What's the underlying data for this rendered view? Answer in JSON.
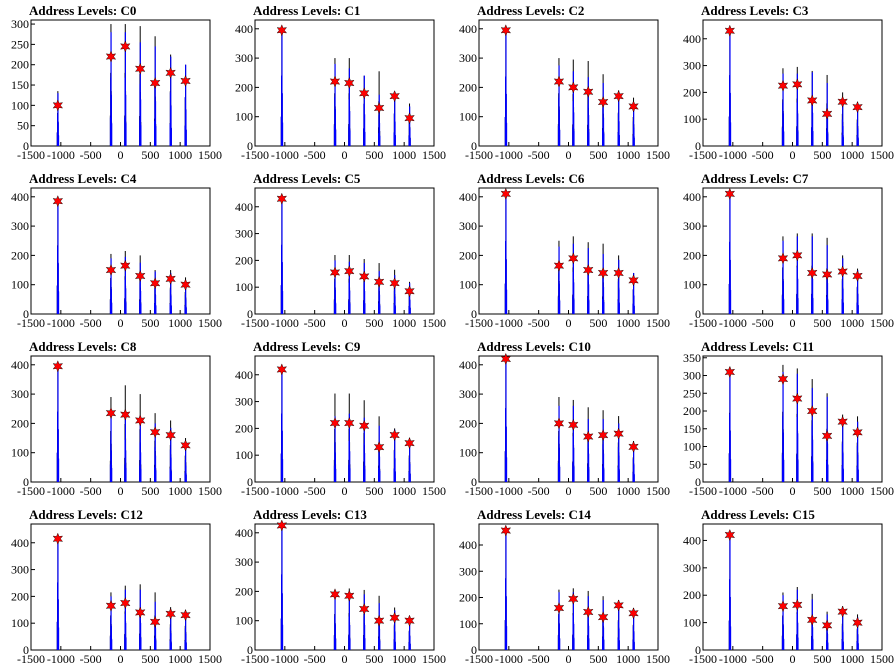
{
  "colors": {
    "black_bars": "#000000",
    "blue_bars": "#0000ff",
    "markers": "#ff0000",
    "frame": "#000000"
  },
  "chart_data": [
    {
      "type": "bar",
      "title": "Address Levels: C0",
      "xlim": [
        -1500,
        1500
      ],
      "ylim": [
        0,
        310
      ],
      "xticks": [
        "-1500",
        "-1000",
        "-500",
        "0",
        "500",
        "1000",
        "1500"
      ],
      "yticks": [
        "0",
        "50",
        "100",
        "150",
        "200",
        "250",
        "300"
      ],
      "peaks_x": [
        -1050,
        -160,
        80,
        330,
        580,
        840,
        1090
      ],
      "black_peaks": [
        135,
        300,
        300,
        295,
        270,
        225,
        200
      ],
      "blue_peaks": [
        130,
        280,
        280,
        255,
        245,
        220,
        200
      ],
      "markers": [
        100,
        220,
        245,
        190,
        155,
        180,
        160
      ]
    },
    {
      "type": "bar",
      "title": "Address Levels: C1",
      "xlim": [
        -1500,
        1500
      ],
      "ylim": [
        0,
        430
      ],
      "xticks": [
        "-1500",
        "-1000",
        "-500",
        "0",
        "500",
        "1000",
        "1500"
      ],
      "yticks": [
        "0",
        "100",
        "200",
        "300",
        "400"
      ],
      "peaks_x": [
        -1050,
        -160,
        80,
        330,
        580,
        840,
        1090
      ],
      "black_peaks": [
        400,
        300,
        300,
        240,
        255,
        185,
        145
      ],
      "blue_peaks": [
        400,
        280,
        265,
        240,
        175,
        185,
        135
      ],
      "markers": [
        395,
        220,
        215,
        180,
        130,
        170,
        95
      ]
    },
    {
      "type": "bar",
      "title": "Address Levels: C2",
      "xlim": [
        -1500,
        1500
      ],
      "ylim": [
        0,
        430
      ],
      "xticks": [
        "-1500",
        "-1000",
        "-500",
        "0",
        "500",
        "1000",
        "1500"
      ],
      "yticks": [
        "0",
        "100",
        "200",
        "300",
        "400"
      ],
      "peaks_x": [
        -1050,
        -160,
        80,
        330,
        580,
        840,
        1090
      ],
      "black_peaks": [
        395,
        300,
        295,
        290,
        245,
        190,
        165
      ],
      "blue_peaks": [
        395,
        275,
        255,
        235,
        215,
        185,
        140
      ],
      "markers": [
        395,
        220,
        200,
        185,
        150,
        170,
        135
      ]
    },
    {
      "type": "bar",
      "title": "Address Levels: C3",
      "xlim": [
        -1500,
        1500
      ],
      "ylim": [
        0,
        470
      ],
      "xticks": [
        "-1500",
        "-1000",
        "-500",
        "0",
        "500",
        "1000",
        "1500"
      ],
      "yticks": [
        "0",
        "100",
        "200",
        "300",
        "400"
      ],
      "peaks_x": [
        -1050,
        -160,
        80,
        330,
        580,
        840,
        1090
      ],
      "black_peaks": [
        440,
        290,
        295,
        280,
        265,
        200,
        165
      ],
      "blue_peaks": [
        440,
        270,
        270,
        275,
        235,
        165,
        145
      ],
      "markers": [
        430,
        225,
        230,
        170,
        120,
        165,
        145
      ]
    },
    {
      "type": "bar",
      "title": "Address Levels: C4",
      "xlim": [
        -1500,
        1500
      ],
      "ylim": [
        0,
        430
      ],
      "xticks": [
        "-1500",
        "-1000",
        "-500",
        "0",
        "500",
        "1000",
        "1500"
      ],
      "yticks": [
        "0",
        "100",
        "200",
        "300",
        "400"
      ],
      "peaks_x": [
        -1050,
        -160,
        80,
        330,
        580,
        840,
        1090
      ],
      "black_peaks": [
        390,
        205,
        215,
        200,
        150,
        150,
        125
      ],
      "blue_peaks": [
        385,
        190,
        195,
        175,
        145,
        140,
        110
      ],
      "markers": [
        385,
        150,
        165,
        130,
        105,
        120,
        100
      ]
    },
    {
      "type": "bar",
      "title": "Address Levels: C5",
      "xlim": [
        -1500,
        1500
      ],
      "ylim": [
        0,
        470
      ],
      "xticks": [
        "-1500",
        "-1000",
        "-500",
        "0",
        "500",
        "1000",
        "1500"
      ],
      "yticks": [
        "0",
        "100",
        "200",
        "300",
        "400"
      ],
      "peaks_x": [
        -1050,
        -160,
        80,
        330,
        580,
        840,
        1090
      ],
      "black_peaks": [
        430,
        220,
        220,
        205,
        190,
        165,
        120
      ],
      "blue_peaks": [
        430,
        200,
        195,
        190,
        160,
        145,
        115
      ],
      "markers": [
        430,
        155,
        160,
        140,
        120,
        115,
        85
      ]
    },
    {
      "type": "bar",
      "title": "Address Levels: C6",
      "xlim": [
        -1500,
        1500
      ],
      "ylim": [
        0,
        430
      ],
      "xticks": [
        "-1500",
        "-1000",
        "-500",
        "0",
        "500",
        "1000",
        "1500"
      ],
      "yticks": [
        "0",
        "100",
        "200",
        "300",
        "400"
      ],
      "peaks_x": [
        -1050,
        -160,
        80,
        330,
        580,
        840,
        1090
      ],
      "black_peaks": [
        415,
        250,
        265,
        245,
        240,
        200,
        140
      ],
      "blue_peaks": [
        415,
        230,
        240,
        225,
        205,
        185,
        140
      ],
      "markers": [
        410,
        165,
        190,
        150,
        140,
        140,
        115
      ]
    },
    {
      "type": "bar",
      "title": "Address Levels: C7",
      "xlim": [
        -1500,
        1500
      ],
      "ylim": [
        0,
        430
      ],
      "xticks": [
        "-1500",
        "-1000",
        "-500",
        "0",
        "500",
        "1000",
        "1500"
      ],
      "yticks": [
        "0",
        "100",
        "200",
        "300",
        "400"
      ],
      "peaks_x": [
        -1050,
        -160,
        80,
        330,
        580,
        840,
        1090
      ],
      "black_peaks": [
        410,
        265,
        275,
        275,
        260,
        200,
        155
      ],
      "blue_peaks": [
        410,
        250,
        265,
        265,
        235,
        190,
        150
      ],
      "markers": [
        410,
        190,
        200,
        140,
        135,
        145,
        130
      ]
    },
    {
      "type": "bar",
      "title": "Address Levels: C8",
      "xlim": [
        -1500,
        1500
      ],
      "ylim": [
        0,
        430
      ],
      "xticks": [
        "-1500",
        "-1000",
        "-500",
        "0",
        "500",
        "1000",
        "1500"
      ],
      "yticks": [
        "0",
        "100",
        "200",
        "300",
        "400"
      ],
      "peaks_x": [
        -1050,
        -160,
        80,
        330,
        580,
        840,
        1090
      ],
      "black_peaks": [
        400,
        290,
        330,
        300,
        235,
        210,
        150
      ],
      "blue_peaks": [
        400,
        240,
        240,
        225,
        200,
        185,
        125
      ],
      "markers": [
        395,
        235,
        230,
        210,
        170,
        160,
        125
      ]
    },
    {
      "type": "bar",
      "title": "Address Levels: C9",
      "xlim": [
        -1500,
        1500
      ],
      "ylim": [
        0,
        470
      ],
      "xticks": [
        "-1500",
        "-1000",
        "-500",
        "0",
        "500",
        "1000",
        "1500"
      ],
      "yticks": [
        "0",
        "100",
        "200",
        "300",
        "400"
      ],
      "peaks_x": [
        -1050,
        -160,
        80,
        330,
        580,
        840,
        1090
      ],
      "black_peaks": [
        425,
        330,
        330,
        305,
        245,
        200,
        165
      ],
      "blue_peaks": [
        425,
        245,
        255,
        240,
        210,
        195,
        150
      ],
      "markers": [
        420,
        220,
        220,
        210,
        130,
        175,
        145
      ]
    },
    {
      "type": "bar",
      "title": "Address Levels: C10",
      "xlim": [
        -1500,
        1500
      ],
      "ylim": [
        0,
        430
      ],
      "xticks": [
        "-1500",
        "-1000",
        "-500",
        "0",
        "500",
        "1000",
        "1500"
      ],
      "yticks": [
        "0",
        "100",
        "200",
        "300",
        "400"
      ],
      "peaks_x": [
        -1050,
        -160,
        80,
        330,
        580,
        840,
        1090
      ],
      "black_peaks": [
        420,
        290,
        280,
        255,
        245,
        225,
        140
      ],
      "blue_peaks": [
        420,
        260,
        260,
        215,
        215,
        200,
        130
      ],
      "markers": [
        420,
        200,
        195,
        155,
        160,
        165,
        120
      ]
    },
    {
      "type": "bar",
      "title": "Address Levels: C11",
      "xlim": [
        -1500,
        1500
      ],
      "ylim": [
        0,
        355
      ],
      "xticks": [
        "-1500",
        "-1000",
        "-500",
        "0",
        "500",
        "1000",
        "1500"
      ],
      "yticks": [
        "0",
        "50",
        "100",
        "150",
        "200",
        "250",
        "300",
        "350"
      ],
      "peaks_x": [
        -1050,
        -160,
        80,
        330,
        580,
        840,
        1090
      ],
      "black_peaks": [
        325,
        330,
        320,
        290,
        250,
        190,
        185
      ],
      "blue_peaks": [
        320,
        310,
        305,
        265,
        240,
        180,
        170
      ],
      "markers": [
        310,
        290,
        235,
        200,
        130,
        170,
        140
      ]
    },
    {
      "type": "bar",
      "title": "Address Levels: C12",
      "xlim": [
        -1500,
        1500
      ],
      "ylim": [
        0,
        470
      ],
      "xticks": [
        "-1500",
        "-1000",
        "-500",
        "0",
        "500",
        "1000",
        "1500"
      ],
      "yticks": [
        "0",
        "100",
        "200",
        "300",
        "400"
      ],
      "peaks_x": [
        -1050,
        -160,
        80,
        330,
        580,
        840,
        1090
      ],
      "black_peaks": [
        420,
        215,
        240,
        245,
        215,
        160,
        150
      ],
      "blue_peaks": [
        420,
        200,
        225,
        225,
        180,
        140,
        135
      ],
      "markers": [
        415,
        165,
        175,
        140,
        105,
        135,
        130
      ]
    },
    {
      "type": "bar",
      "title": "Address Levels: C13",
      "xlim": [
        -1500,
        1500
      ],
      "ylim": [
        0,
        430
      ],
      "xticks": [
        "-1500",
        "-1000",
        "-500",
        "0",
        "500",
        "1000",
        "1500"
      ],
      "yticks": [
        "0",
        "100",
        "200",
        "300",
        "400"
      ],
      "peaks_x": [
        -1050,
        -160,
        80,
        330,
        580,
        840,
        1090
      ],
      "black_peaks": [
        430,
        205,
        210,
        205,
        185,
        145,
        110
      ],
      "blue_peaks": [
        430,
        195,
        190,
        190,
        160,
        135,
        105
      ],
      "markers": [
        425,
        190,
        185,
        140,
        100,
        110,
        100
      ]
    },
    {
      "type": "bar",
      "title": "Address Levels: C14",
      "xlim": [
        -1500,
        1500
      ],
      "ylim": [
        0,
        480
      ],
      "xticks": [
        "-1500",
        "-1000",
        "-500",
        "0",
        "500",
        "1000",
        "1500"
      ],
      "yticks": [
        "0",
        "100",
        "200",
        "300",
        "400"
      ],
      "peaks_x": [
        -1050,
        -160,
        80,
        330,
        580,
        840,
        1090
      ],
      "black_peaks": [
        455,
        230,
        235,
        225,
        205,
        190,
        160
      ],
      "blue_peaks": [
        455,
        220,
        220,
        205,
        190,
        180,
        150
      ],
      "markers": [
        455,
        160,
        195,
        145,
        125,
        170,
        140
      ]
    },
    {
      "type": "bar",
      "title": "Address Levels: C15",
      "xlim": [
        -1500,
        1500
      ],
      "ylim": [
        0,
        460
      ],
      "xticks": [
        "-1500",
        "-1000",
        "-500",
        "0",
        "500",
        "1000",
        "1500"
      ],
      "yticks": [
        "0",
        "100",
        "200",
        "300",
        "400"
      ],
      "peaks_x": [
        -1050,
        -160,
        80,
        330,
        580,
        840,
        1090
      ],
      "black_peaks": [
        430,
        210,
        230,
        205,
        140,
        160,
        130
      ],
      "blue_peaks": [
        430,
        200,
        220,
        185,
        130,
        145,
        120
      ],
      "markers": [
        420,
        160,
        165,
        110,
        90,
        140,
        100
      ]
    }
  ]
}
